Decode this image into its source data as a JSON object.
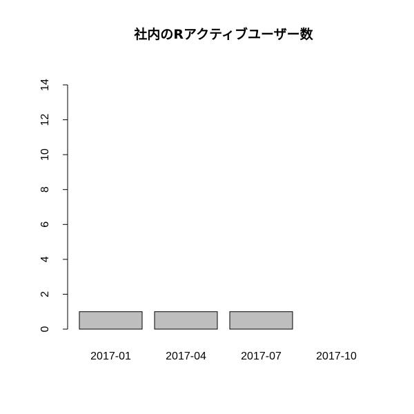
{
  "chart_data": {
    "type": "bar",
    "title": "社内のRアクティブユーザー数",
    "categories": [
      "2017-01",
      "2017-04",
      "2017-07",
      "2017-10"
    ],
    "values": [
      1,
      1,
      1,
      0
    ],
    "xlabel": "",
    "ylabel": "",
    "ylim": [
      0,
      14
    ],
    "yticks": [
      0,
      2,
      4,
      6,
      8,
      10,
      12,
      14
    ],
    "grid": false,
    "legend": "none",
    "bar_color": "#bebebe",
    "axis_color": "#000000"
  }
}
